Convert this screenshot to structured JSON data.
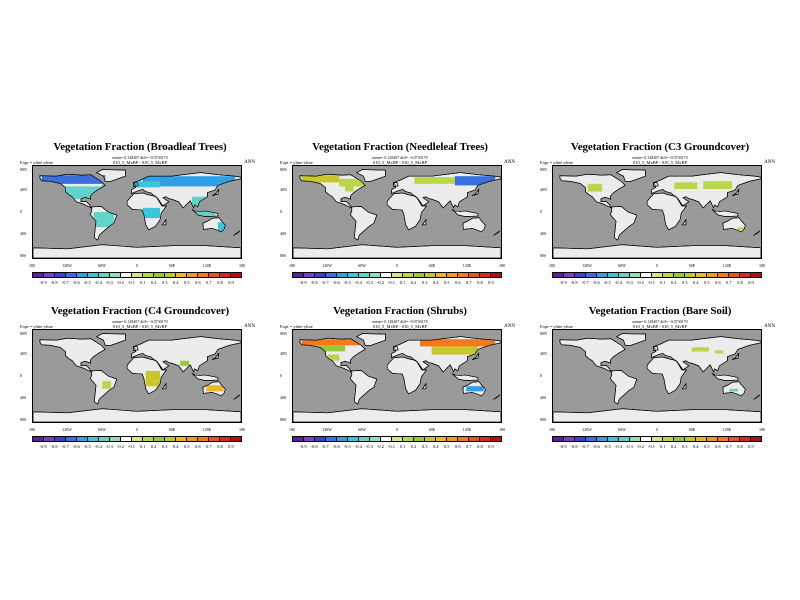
{
  "figure": {
    "colorbar_colors": [
      "#5a1f9e",
      "#7a3fc4",
      "#3c3fcf",
      "#3a6fdf",
      "#2fa0e6",
      "#3cc4dd",
      "#61d3c8",
      "#8ee0b6",
      "#ffffff",
      "#d6e87a",
      "#b8d84a",
      "#96c83a",
      "#c9c62c",
      "#e6b82a",
      "#f09a22",
      "#f27a1c",
      "#e8541a",
      "#d82a1a",
      "#b01010"
    ]
  },
  "chart_data": [
    {
      "type": "heatmap",
      "title": "Vegetation Fraction (Broadleaf Trees)",
      "stats": "mean= 0.128407 diff= -0.0730170",
      "experiment": "Expt = yline-yline",
      "case": "010_5_MxBP - 010_5_MxBP",
      "season": "ANN",
      "lat_ticks": [
        "80N",
        "40N",
        "0",
        "40S",
        "80S"
      ],
      "lon_ticks": [
        "180",
        "120W",
        "60W",
        "0",
        "60E",
        "120E",
        "180"
      ],
      "colorbar_labels": [
        "-0.9",
        "-0.8",
        "-0.7",
        "-0.6",
        "-0.5",
        "-0.4",
        "-0.3",
        "-0.2",
        "-0.1",
        "0.1",
        "0.2",
        "0.3",
        "0.4",
        "0.5",
        "0.6",
        "0.7",
        "0.8",
        "0.9"
      ],
      "xlim": [
        -180,
        180
      ],
      "ylim": [
        -90,
        90
      ],
      "anomaly_regions": [
        {
          "lon": [
            -165,
            -55
          ],
          "lat": [
            55,
            72
          ],
          "value": -0.5
        },
        {
          "lon": [
            10,
            170
          ],
          "lat": [
            50,
            70
          ],
          "value": -0.4
        },
        {
          "lon": [
            -60,
            40
          ],
          "lat": [
            48,
            60
          ],
          "value": -0.3
        },
        {
          "lon": [
            -130,
            -60
          ],
          "lat": [
            25,
            50
          ],
          "value": -0.2
        },
        {
          "lon": [
            10,
            40
          ],
          "lat": [
            -12,
            8
          ],
          "value": -0.3
        },
        {
          "lon": [
            95,
            135
          ],
          "lat": [
            -8,
            30
          ],
          "value": -0.2
        },
        {
          "lon": [
            -75,
            -40
          ],
          "lat": [
            -30,
            0
          ],
          "value": -0.2
        },
        {
          "lon": [
            140,
            153
          ],
          "lat": [
            -38,
            -20
          ],
          "value": -0.3
        }
      ]
    },
    {
      "type": "heatmap",
      "title": "Vegetation Fraction (Needleleaf Trees)",
      "stats": "mean= 0.128407 diff= -0.0730170",
      "experiment": "Expt = yline-yline",
      "case": "010_5_MxBP - 010_5_MxBP",
      "season": "ANN",
      "lat_ticks": [
        "80N",
        "40N",
        "0",
        "40S",
        "80S"
      ],
      "lon_ticks": [
        "180",
        "120W",
        "60W",
        "0",
        "60E",
        "120E",
        "180"
      ],
      "colorbar_labels": [
        "-0.9",
        "-0.8",
        "-0.7",
        "-0.6",
        "-0.5",
        "-0.4",
        "-0.3",
        "-0.2",
        "-0.1",
        "0.1",
        "0.2",
        "0.3",
        "0.4",
        "0.5",
        "0.6",
        "0.7",
        "0.8",
        "0.9"
      ],
      "xlim": [
        -180,
        180
      ],
      "ylim": [
        -90,
        90
      ],
      "anomaly_regions": [
        {
          "lon": [
            -165,
            -100
          ],
          "lat": [
            58,
            72
          ],
          "value": 0.4
        },
        {
          "lon": [
            -100,
            -55
          ],
          "lat": [
            50,
            65
          ],
          "value": 0.2
        },
        {
          "lon": [
            30,
            100
          ],
          "lat": [
            55,
            68
          ],
          "value": 0.2
        },
        {
          "lon": [
            100,
            170
          ],
          "lat": [
            52,
            70
          ],
          "value": -0.5
        },
        {
          "lon": [
            -90,
            -75
          ],
          "lat": [
            40,
            50
          ],
          "value": 0.2
        }
      ]
    },
    {
      "type": "heatmap",
      "title": "Vegetation Fraction (C3 Groundcover)",
      "stats": "mean= 0.128407 diff= -0.0730170",
      "experiment": "Expt = yline-yline",
      "case": "010_5_MxBP - 010_5_MxBP",
      "season": "ANN",
      "lat_ticks": [
        "80N",
        "40N",
        "0",
        "40S",
        "80S"
      ],
      "lon_ticks": [
        "180",
        "120W",
        "60W",
        "0",
        "60E",
        "120E",
        "180"
      ],
      "colorbar_labels": [
        "-0.9",
        "-0.8",
        "-0.7",
        "-0.6",
        "-0.5",
        "-0.4",
        "-0.3",
        "-0.2",
        "-0.1",
        "0.1",
        "0.2",
        "0.3",
        "0.4",
        "0.5",
        "0.6",
        "0.7",
        "0.8",
        "0.9"
      ],
      "xlim": [
        -180,
        180
      ],
      "ylim": [
        -90,
        90
      ],
      "anomaly_regions": [
        {
          "lon": [
            -120,
            -95
          ],
          "lat": [
            40,
            55
          ],
          "value": 0.2
        },
        {
          "lon": [
            30,
            70
          ],
          "lat": [
            45,
            58
          ],
          "value": 0.2
        },
        {
          "lon": [
            80,
            130
          ],
          "lat": [
            45,
            60
          ],
          "value": 0.2
        },
        {
          "lon": [
            140,
            150
          ],
          "lat": [
            -35,
            -30
          ],
          "value": 0.2
        }
      ]
    },
    {
      "type": "heatmap",
      "title": "Vegetation Fraction (C4 Groundcover)",
      "stats": "mean= 0.128407 diff= -0.0730170",
      "experiment": "Expt = yline-yline",
      "case": "010_5_MxBP - 010_5_MxBP",
      "season": "ANN",
      "lat_ticks": [
        "80N",
        "40N",
        "0",
        "40S",
        "80S"
      ],
      "lon_ticks": [
        "180",
        "120W",
        "60W",
        "0",
        "60E",
        "120E",
        "180"
      ],
      "colorbar_labels": [
        "-0.9",
        "-0.8",
        "-0.7",
        "-0.6",
        "-0.5",
        "-0.4",
        "-0.3",
        "-0.2",
        "-0.1",
        "0.1",
        "0.2",
        "0.3",
        "0.4",
        "0.5",
        "0.6",
        "0.7",
        "0.8",
        "0.9"
      ],
      "xlim": [
        -180,
        180
      ],
      "ylim": [
        -90,
        90
      ],
      "anomaly_regions": [
        {
          "lon": [
            15,
            40
          ],
          "lat": [
            -20,
            10
          ],
          "value": 0.4
        },
        {
          "lon": [
            75,
            90
          ],
          "lat": [
            20,
            30
          ],
          "value": 0.3
        },
        {
          "lon": [
            120,
            150
          ],
          "lat": [
            -30,
            -18
          ],
          "value": 0.5
        },
        {
          "lon": [
            -60,
            -45
          ],
          "lat": [
            -25,
            -10
          ],
          "value": 0.2
        }
      ]
    },
    {
      "type": "heatmap",
      "title": "Vegetation Fraction (Shrubs)",
      "stats": "mean= 0.128407 diff= -0.0730170",
      "experiment": "Expt = yline-yline",
      "case": "010_5_MxBP - 010_5_MxBP",
      "season": "ANN",
      "lat_ticks": [
        "80N",
        "40N",
        "0",
        "40S",
        "80S"
      ],
      "lon_ticks": [
        "180",
        "120W",
        "60W",
        "0",
        "60E",
        "120E",
        "180"
      ],
      "colorbar_labels": [
        "-0.9",
        "-0.8",
        "-0.7",
        "-0.6",
        "-0.5",
        "-0.4",
        "-0.3",
        "-0.2",
        "-0.1",
        "0.1",
        "0.2",
        "0.3",
        "0.4",
        "0.5",
        "0.6",
        "0.7",
        "0.8",
        "0.9"
      ],
      "xlim": [
        -180,
        180
      ],
      "ylim": [
        -90,
        90
      ],
      "anomaly_regions": [
        {
          "lon": [
            -165,
            -60
          ],
          "lat": [
            60,
            72
          ],
          "value": 0.7
        },
        {
          "lon": [
            -150,
            -90
          ],
          "lat": [
            48,
            60
          ],
          "value": 0.3
        },
        {
          "lon": [
            40,
            170
          ],
          "lat": [
            58,
            72
          ],
          "value": 0.7
        },
        {
          "lon": [
            60,
            140
          ],
          "lat": [
            42,
            58
          ],
          "value": 0.4
        },
        {
          "lon": [
            -120,
            -100
          ],
          "lat": [
            30,
            42
          ],
          "value": 0.2
        },
        {
          "lon": [
            120,
            150
          ],
          "lat": [
            -30,
            -20
          ],
          "value": -0.4
        }
      ]
    },
    {
      "type": "heatmap",
      "title": "Vegetation Fraction (Bare Soil)",
      "stats": "mean= 0.128407 diff= -0.0730170",
      "experiment": "Expt = yline-yline",
      "case": "010_5_MxBP - 010_5_MxBP",
      "season": "ANN",
      "lat_ticks": [
        "80N",
        "40N",
        "0",
        "40S",
        "80S"
      ],
      "lon_ticks": [
        "180",
        "120W",
        "60W",
        "0",
        "60E",
        "120E",
        "180"
      ],
      "colorbar_labels": [
        "-0.9",
        "-0.8",
        "-0.7",
        "-0.6",
        "-0.5",
        "-0.4",
        "-0.3",
        "-0.2",
        "-0.1",
        "0.1",
        "0.2",
        "0.3",
        "0.4",
        "0.5",
        "0.6",
        "0.7",
        "0.8",
        "0.9"
      ],
      "xlim": [
        -180,
        180
      ],
      "ylim": [
        -90,
        90
      ],
      "anomaly_regions": [
        {
          "lon": [
            60,
            90
          ],
          "lat": [
            48,
            56
          ],
          "value": 0.2
        },
        {
          "lon": [
            100,
            115
          ],
          "lat": [
            44,
            50
          ],
          "value": 0.2
        },
        {
          "lon": [
            125,
            140
          ],
          "lat": [
            -30,
            -25
          ],
          "value": -0.2
        }
      ]
    }
  ]
}
